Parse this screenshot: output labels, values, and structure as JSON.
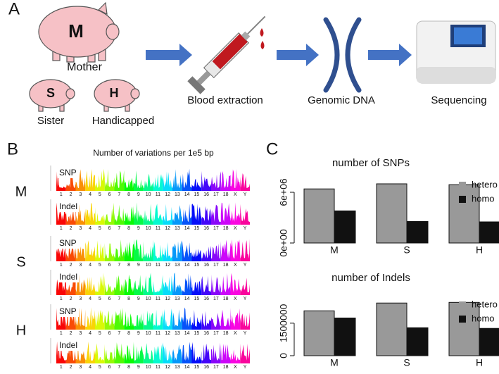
{
  "panel_labels": [
    "A",
    "B",
    "C"
  ],
  "panel_a": {
    "pigs": [
      {
        "letter": "M",
        "label": "Mother"
      },
      {
        "letter": "S",
        "label": "Sister"
      },
      {
        "letter": "H",
        "label": "Handicapped"
      }
    ],
    "steps": [
      "Blood extraction",
      "Genomic DNA",
      "Sequencing"
    ]
  },
  "panel_b": {
    "title": "Number of variations per 1e5 bp",
    "samples": [
      "M",
      "S",
      "H"
    ],
    "tracks": [
      "SNP",
      "Indel"
    ],
    "chromosomes": [
      "1",
      "2",
      "3",
      "4",
      "5",
      "6",
      "7",
      "8",
      "9",
      "10",
      "11",
      "12",
      "13",
      "14",
      "15",
      "16",
      "17",
      "18",
      "X",
      "Y"
    ]
  },
  "chart_data": [
    {
      "type": "bar",
      "title": "number of SNPs",
      "categories": [
        "M",
        "S",
        "H"
      ],
      "series": [
        {
          "name": "hetero",
          "color": "#999999",
          "values": [
            6400000,
            7000000,
            6900000
          ]
        },
        {
          "name": "homo",
          "color": "#111111",
          "values": [
            3800000,
            2550000,
            2500000
          ]
        }
      ],
      "ylim": [
        0,
        7500000
      ],
      "yticks": [
        {
          "value": 0,
          "label": "0e+00"
        },
        {
          "value": 6000000,
          "label": "6e+06"
        }
      ],
      "legend": "top-right"
    },
    {
      "type": "bar",
      "title": "number of Indels",
      "categories": [
        "M",
        "S",
        "H"
      ],
      "series": [
        {
          "name": "hetero",
          "color": "#999999",
          "values": [
            2070000,
            2430000,
            2460000
          ]
        },
        {
          "name": "homo",
          "color": "#111111",
          "values": [
            1740000,
            1290000,
            1260000
          ]
        }
      ],
      "ylim": [
        0,
        2600000
      ],
      "yticks": [
        0,
        1500000
      ],
      "legend": "top-right"
    }
  ]
}
